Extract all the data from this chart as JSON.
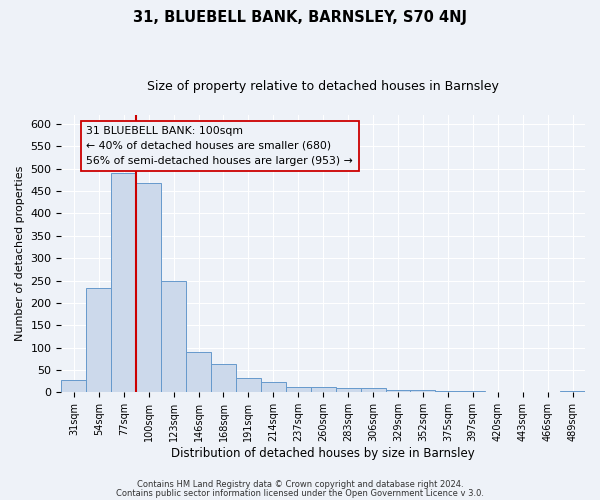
{
  "title": "31, BLUEBELL BANK, BARNSLEY, S70 4NJ",
  "subtitle": "Size of property relative to detached houses in Barnsley",
  "xlabel": "Distribution of detached houses by size in Barnsley",
  "ylabel": "Number of detached properties",
  "bin_labels": [
    "31sqm",
    "54sqm",
    "77sqm",
    "100sqm",
    "123sqm",
    "146sqm",
    "168sqm",
    "191sqm",
    "214sqm",
    "237sqm",
    "260sqm",
    "283sqm",
    "306sqm",
    "329sqm",
    "352sqm",
    "375sqm",
    "397sqm",
    "420sqm",
    "443sqm",
    "466sqm",
    "489sqm"
  ],
  "bar_heights": [
    27,
    234,
    491,
    469,
    248,
    90,
    63,
    33,
    24,
    13,
    11,
    10,
    10,
    6,
    5,
    3,
    2,
    1,
    1,
    0,
    3
  ],
  "bar_color": "#ccd9eb",
  "bar_edge_color": "#6699cc",
  "red_line_index": 3,
  "red_line_color": "#cc0000",
  "annotation_title": "31 BLUEBELL BANK: 100sqm",
  "annotation_line1": "← 40% of detached houses are smaller (680)",
  "annotation_line2": "56% of semi-detached houses are larger (953) →",
  "annotation_box_edge": "#cc0000",
  "footer_line1": "Contains HM Land Registry data © Crown copyright and database right 2024.",
  "footer_line2": "Contains public sector information licensed under the Open Government Licence v 3.0.",
  "ylim": [
    0,
    620
  ],
  "background_color": "#eef2f8",
  "grid_color": "#ffffff"
}
